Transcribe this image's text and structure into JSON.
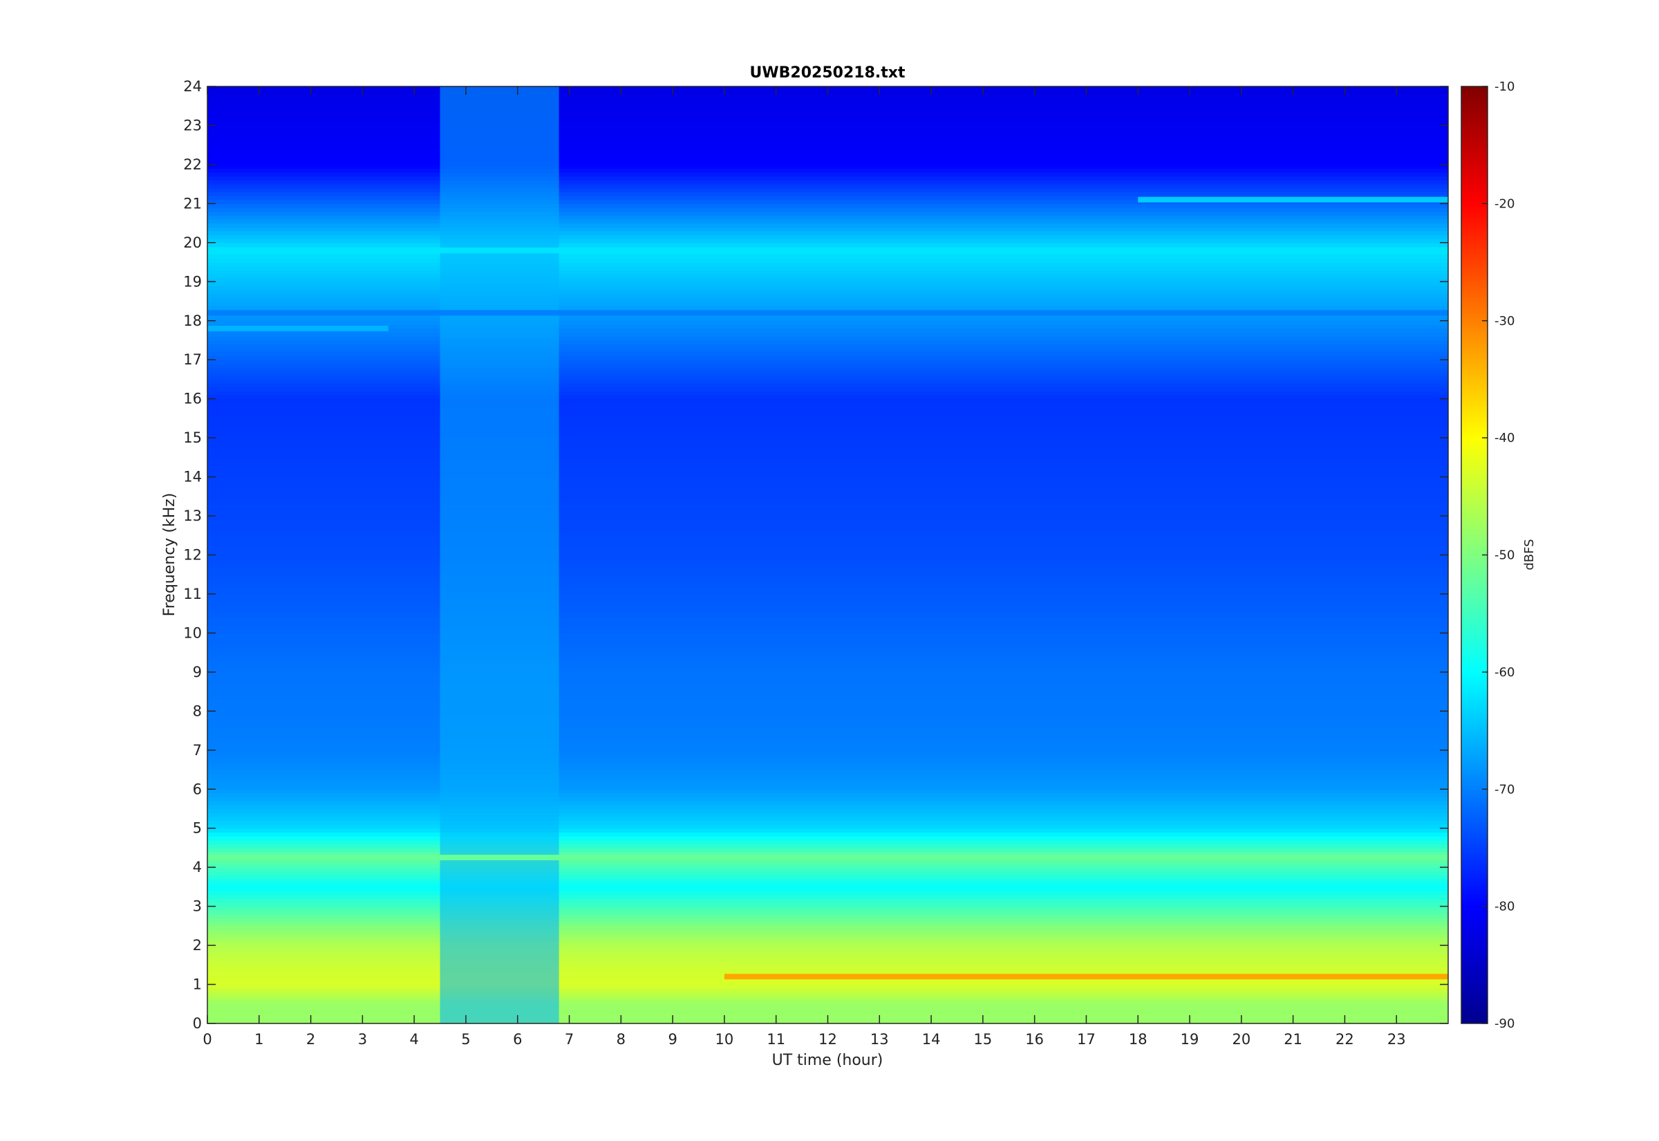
{
  "chart_data": {
    "type": "heatmap",
    "title": "UWB20250218.txt",
    "xlabel": "UT time (hour)",
    "ylabel": "Frequency (kHz)",
    "xlim": [
      0,
      24
    ],
    "ylim": [
      0,
      24
    ],
    "x_ticks": [
      0,
      1,
      2,
      3,
      4,
      5,
      6,
      7,
      8,
      9,
      10,
      11,
      12,
      13,
      14,
      15,
      16,
      17,
      18,
      19,
      20,
      21,
      22,
      23
    ],
    "y_ticks": [
      0,
      1,
      2,
      3,
      4,
      5,
      6,
      7,
      8,
      9,
      10,
      11,
      12,
      13,
      14,
      15,
      16,
      17,
      18,
      19,
      20,
      21,
      22,
      23,
      24
    ],
    "colorbar": {
      "label": "dBFS",
      "range": [
        -90,
        -10
      ],
      "ticks": [
        -10,
        -20,
        -30,
        -40,
        -50,
        -60,
        -70,
        -80,
        -90
      ],
      "colormap": "jet"
    },
    "approx_level_by_frequency_khz": [
      {
        "freq": 0.5,
        "level": -48
      },
      {
        "freq": 1.0,
        "level": -43
      },
      {
        "freq": 1.5,
        "level": -44
      },
      {
        "freq": 2.0,
        "level": -46
      },
      {
        "freq": 2.5,
        "level": -50
      },
      {
        "freq": 3.0,
        "level": -55
      },
      {
        "freq": 3.5,
        "level": -60
      },
      {
        "freq": 4.25,
        "level": -52
      },
      {
        "freq": 5.0,
        "level": -63
      },
      {
        "freq": 6.0,
        "level": -68
      },
      {
        "freq": 7.0,
        "level": -70
      },
      {
        "freq": 9.0,
        "level": -71
      },
      {
        "freq": 12.0,
        "level": -74
      },
      {
        "freq": 16.0,
        "level": -76
      },
      {
        "freq": 19.8,
        "level": -62
      },
      {
        "freq": 22.0,
        "level": -80
      },
      {
        "freq": 24.0,
        "level": -82
      }
    ],
    "features": [
      {
        "kind": "horizontal-band",
        "freq": 19.8,
        "hours": [
          0,
          24
        ],
        "level": -62
      },
      {
        "kind": "horizontal-band",
        "freq": 21.1,
        "hours": [
          18,
          24
        ],
        "level": -64
      },
      {
        "kind": "horizontal-band",
        "freq": 18.2,
        "hours": [
          0,
          24
        ],
        "level": -70
      },
      {
        "kind": "horizontal-band",
        "freq": 17.8,
        "hours": [
          0,
          3.5
        ],
        "level": -66
      },
      {
        "kind": "horizontal-band",
        "freq": 4.25,
        "hours": [
          0,
          24
        ],
        "level": -52
      },
      {
        "kind": "horizontal-band",
        "freq": 1.2,
        "hours": [
          10,
          24
        ],
        "level": -33
      },
      {
        "kind": "vertical-band",
        "hours": [
          4.5,
          6.8
        ],
        "freq": [
          0,
          24
        ],
        "level": -66
      }
    ]
  }
}
